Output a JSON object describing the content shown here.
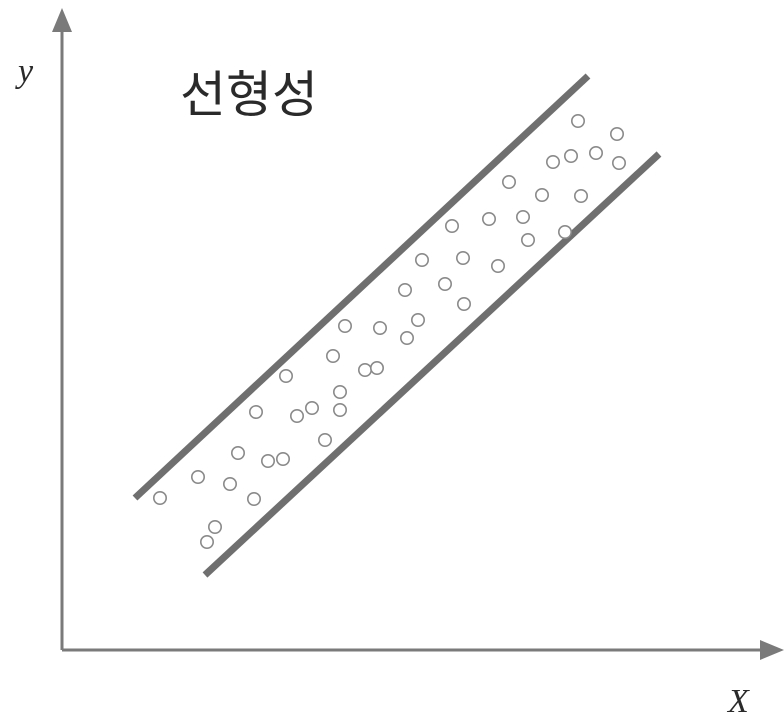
{
  "chart_data": {
    "type": "scatter",
    "title": "선형성",
    "xlabel": "X",
    "ylabel": "y",
    "grid": false,
    "series": [
      {
        "values": [
          [
            160,
            498
          ],
          [
            198,
            477
          ],
          [
            230,
            484
          ],
          [
            238,
            453
          ],
          [
            256,
            412
          ],
          [
            254,
            499
          ],
          [
            268,
            461
          ],
          [
            283,
            459
          ],
          [
            207,
            542
          ],
          [
            215,
            527
          ],
          [
            286,
            376
          ],
          [
            297,
            416
          ],
          [
            312,
            408
          ],
          [
            325,
            440
          ],
          [
            333,
            356
          ],
          [
            340,
            392
          ],
          [
            340,
            410
          ],
          [
            345,
            326
          ],
          [
            365,
            370
          ],
          [
            377,
            368
          ],
          [
            380,
            328
          ],
          [
            407,
            338
          ],
          [
            405,
            290
          ],
          [
            418,
            320
          ],
          [
            422,
            260
          ],
          [
            445,
            284
          ],
          [
            452,
            226
          ],
          [
            463,
            258
          ],
          [
            464,
            304
          ],
          [
            489,
            219
          ],
          [
            498,
            266
          ],
          [
            509,
            182
          ],
          [
            523,
            217
          ],
          [
            528,
            240
          ],
          [
            542,
            195
          ],
          [
            553,
            162
          ],
          [
            565,
            232
          ],
          [
            571,
            156
          ],
          [
            578,
            121
          ],
          [
            581,
            196
          ],
          [
            596,
            153
          ],
          [
            617,
            134
          ],
          [
            619,
            163
          ]
        ]
      }
    ],
    "bands": [
      {
        "from": [
          135,
          498
        ],
        "to": [
          588,
          76
        ]
      },
      {
        "from": [
          205,
          575
        ],
        "to": [
          659,
          154
        ]
      }
    ]
  },
  "colors": {
    "axis": "#7a7a7a",
    "band": "#6f6f6f",
    "point_stroke": "#8a8a8a",
    "text": "#2a2a2a"
  }
}
